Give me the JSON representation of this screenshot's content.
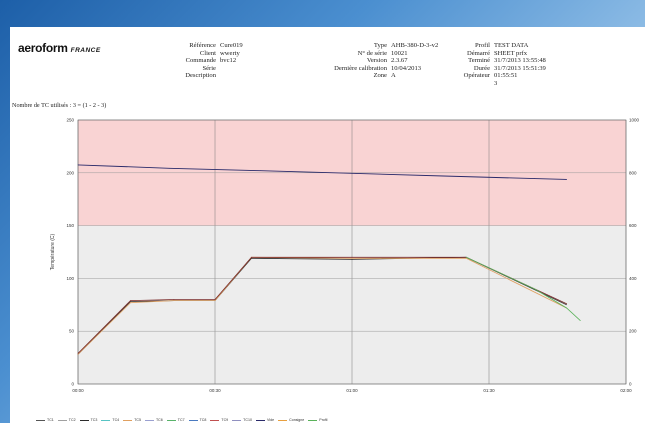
{
  "header": {
    "logo": "aeroform",
    "logo_sub": "FRANCE",
    "col1": [
      {
        "key": "Référence",
        "value": "Cure019"
      },
      {
        "key": "Client",
        "value": "wwerty"
      },
      {
        "key": "Commande",
        "value": "bvc12"
      },
      {
        "key": "Série",
        "value": ""
      },
      {
        "key": "Description",
        "value": ""
      }
    ],
    "col2": [
      {
        "key": "Type",
        "value": "AHB-380-D-3-v2"
      },
      {
        "key": "N° de série",
        "value": "10021"
      },
      {
        "key": "Version",
        "value": "2.3.67"
      },
      {
        "key": "Dernière calibration",
        "value": "10/04/2013"
      },
      {
        "key": "Zone",
        "value": "A"
      }
    ],
    "col3": [
      {
        "key": "Profil",
        "value": "TEST DATA"
      },
      {
        "key": "Démarré",
        "value": "SHEET prfx"
      },
      {
        "key": "Terminé",
        "value": "31/7/2013 13:55:48"
      },
      {
        "key": "Durée",
        "value": "31/7/2013 15:51:39"
      },
      {
        "key": "Opérateur",
        "value": "01:55:51"
      },
      {
        "key": "",
        "value": "3"
      }
    ],
    "tc_label": "Nombre de TC utilisés : 3 = (1 - 2 - 3)"
  },
  "chart_data": {
    "type": "line",
    "ylabel": "Température (C)",
    "ylim": [
      0,
      250
    ],
    "y_ticks": [
      "0",
      "50",
      "100",
      "150",
      "200",
      "250"
    ],
    "y2lim": [
      0,
      1000
    ],
    "y2_ticks": [
      "0",
      "200",
      "400",
      "600",
      "800",
      "1000"
    ],
    "x_ticks": [
      "00:00",
      "00:30",
      "01:00",
      "01:30",
      "02:00"
    ],
    "xlim_minutes": [
      0,
      120
    ],
    "zones": [
      {
        "from": 150,
        "to": 250,
        "color": "#f9d3d3"
      },
      {
        "from": 0,
        "to": 150,
        "color": "#ededed"
      }
    ],
    "series": [
      {
        "name": "TC1",
        "color": "#2b2b2b",
        "axis": "left",
        "x": [
          0,
          11.5,
          21,
          30,
          38,
          60,
          85,
          107
        ],
        "y": [
          28,
          78,
          79,
          79,
          119,
          118,
          120,
          75
        ]
      },
      {
        "name": "TC2",
        "color": "#e0a060",
        "axis": "left",
        "x": [
          0,
          11.5,
          21,
          30,
          38,
          60,
          85,
          107
        ],
        "y": [
          28,
          77,
          79,
          79,
          120,
          119,
          119,
          72
        ]
      },
      {
        "name": "TC3",
        "color": "#7a2a2a",
        "axis": "left",
        "x": [
          0,
          11.5,
          21,
          30,
          38,
          60,
          85,
          107
        ],
        "y": [
          29,
          79,
          80,
          80,
          120,
          120,
          120,
          76
        ]
      },
      {
        "name": "Vide",
        "color": "#2a2a6a",
        "axis": "right",
        "x": [
          0,
          20,
          40,
          60,
          80,
          100,
          107
        ],
        "y": [
          830,
          817,
          808,
          798,
          788,
          778,
          775
        ]
      },
      {
        "name": "Profil",
        "color": "#5ab25a",
        "axis": "left",
        "x": [
          85,
          100,
          107,
          110
        ],
        "y": [
          120,
          90,
          72,
          60
        ]
      }
    ],
    "legend": [
      {
        "name": "TC1",
        "color": "#555555"
      },
      {
        "name": "TC2",
        "color": "#a0a0a0"
      },
      {
        "name": "TC3",
        "color": "#2b2b2b"
      },
      {
        "name": "TC4",
        "color": "#57c4c4"
      },
      {
        "name": "TC5",
        "color": "#e0a060"
      },
      {
        "name": "TC6",
        "color": "#9aa0d0"
      },
      {
        "name": "TC7",
        "color": "#59b36a"
      },
      {
        "name": "TC8",
        "color": "#4a7ac0"
      },
      {
        "name": "TC9",
        "color": "#c05050"
      },
      {
        "name": "TC10",
        "color": "#9090c0"
      },
      {
        "name": "Vide",
        "color": "#2a2a6a"
      },
      {
        "name": "Consigne",
        "color": "#e8a040"
      },
      {
        "name": "Profil",
        "color": "#5ab25a"
      }
    ]
  }
}
